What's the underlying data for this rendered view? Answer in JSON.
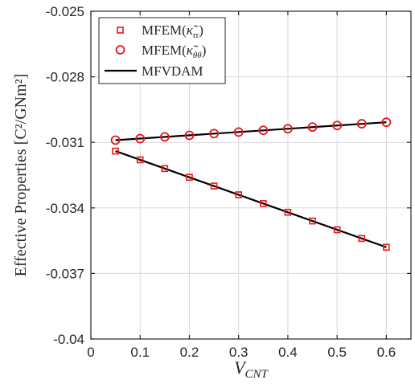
{
  "chart_data": {
    "type": "scatter",
    "xlabel": "V",
    "xlabel_sub": "CNT",
    "ylabel": "Effective Properties [C²/GNm²]",
    "xlim": [
      0,
      0.65
    ],
    "ylim": [
      -0.04,
      -0.025
    ],
    "xticks": [
      "0",
      "0.1",
      "0.2",
      "0.3",
      "0.4",
      "0.5",
      "0.6"
    ],
    "yticks": [
      "-0.04",
      "-0.037",
      "-0.034",
      "-0.031",
      "-0.028",
      "-0.025"
    ],
    "xtick_values": [
      0,
      0.1,
      0.2,
      0.3,
      0.4,
      0.5,
      0.6
    ],
    "ytick_values": [
      -0.04,
      -0.037,
      -0.034,
      -0.031,
      -0.028,
      -0.025
    ],
    "grid": true,
    "legend_position": "top-left",
    "x": [
      0.05,
      0.1,
      0.15,
      0.2,
      0.25,
      0.3,
      0.35,
      0.4,
      0.45,
      0.5,
      0.55,
      0.6
    ],
    "series": [
      {
        "name": "MFEM(κ̃rr)",
        "name_main": "MFEM(",
        "name_symbol": "κ̃",
        "name_sub": "rr",
        "name_close": ")",
        "marker": "square",
        "color": "#e8161b",
        "values": [
          -0.0314,
          -0.0318,
          -0.0322,
          -0.0326,
          -0.033,
          -0.0334,
          -0.0338,
          -0.0342,
          -0.0346,
          -0.035,
          -0.0354,
          -0.0358
        ]
      },
      {
        "name": "MFEM(κ̃θθ)",
        "name_main": "MFEM(",
        "name_symbol": "κ̃",
        "name_sub": "θθ",
        "name_close": ")",
        "marker": "circle",
        "color": "#e8161b",
        "values": [
          -0.0309,
          -0.03083,
          -0.03075,
          -0.03068,
          -0.0306,
          -0.03053,
          -0.03045,
          -0.03038,
          -0.0303,
          -0.03023,
          -0.03015,
          -0.03008
        ]
      },
      {
        "name": "MFVDAM",
        "marker": "line",
        "color": "#000000",
        "segments": [
          {
            "x": [
              0.05,
              0.6
            ],
            "y": [
              -0.0314,
              -0.0358
            ]
          },
          {
            "x": [
              0.05,
              0.6
            ],
            "y": [
              -0.0309,
              -0.03008
            ]
          }
        ]
      }
    ]
  }
}
